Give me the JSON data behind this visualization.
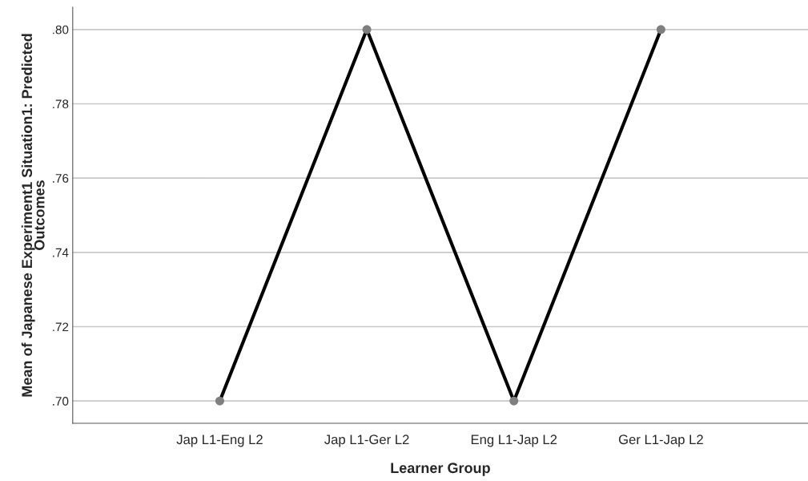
{
  "chart_data": {
    "type": "line",
    "xlabel": "Learner Group",
    "ylabel": "Mean of Japanese Experiment1 Situation1: Predicted\nOutcomes",
    "categories": [
      "Jap L1-Eng L2",
      "Jap L1-Ger L2",
      "Eng L1-Jap L2",
      "Ger L1-Jap L2"
    ],
    "series": [
      {
        "color": "#000000",
        "values": [
          0.7,
          0.8,
          0.7,
          0.8
        ]
      }
    ],
    "ylim": [
      0.694,
      0.806
    ],
    "yticks": [
      {
        "value": 0.7,
        "label": ".70"
      },
      {
        "value": 0.72,
        "label": ".72"
      },
      {
        "value": 0.74,
        "label": ".74"
      },
      {
        "value": 0.76,
        "label": ".76"
      },
      {
        "value": 0.78,
        "label": ".78"
      },
      {
        "value": 0.8,
        "label": ".80"
      }
    ],
    "grid": "y",
    "marker": "circle",
    "line_style": "solid"
  }
}
